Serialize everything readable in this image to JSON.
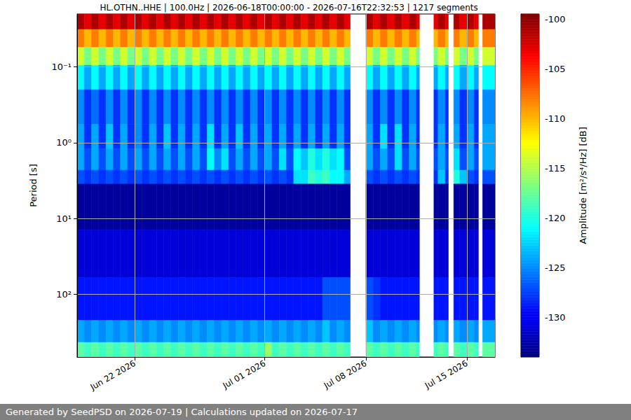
{
  "chart_data": {
    "type": "heatmap",
    "title": "HL.OTHN..HHE | 100.0Hz | 2026-06-18T00:00:00 - 2026-07-16T22:32:53 | 1217 segments",
    "footer": "Generated by SeedPSD on 2026-07-19 | Calculations updated on 2026-07-17",
    "y_label": "Period [s]",
    "colorbar_label": "Amplitude [m²/s⁴/Hz] [dB]",
    "log": "y",
    "grid": true,
    "xlim": [
      "2026-06-18T00:00:00",
      "2026-07-16T22:32:53"
    ],
    "xticks": [
      {
        "value": "2026-06-22T00:00:00",
        "label": "Jun 22 2026"
      },
      {
        "value": "2026-07-01T00:00:00",
        "label": "Jul 01 2026"
      },
      {
        "value": "2026-07-08T00:00:00",
        "label": "Jul 08 2026"
      },
      {
        "value": "2026-07-15T00:00:00",
        "label": "Jul 15 2026"
      }
    ],
    "ylim": [
      0.02,
      670
    ],
    "yticks": [
      {
        "value": 0.1,
        "label": "10⁻¹"
      },
      {
        "value": 1,
        "label": "10⁰"
      },
      {
        "value": 10,
        "label": "10¹"
      },
      {
        "value": 100,
        "label": "10²"
      }
    ],
    "colorbar_range": [
      -134,
      -99.5
    ],
    "colorbar_ticks": [
      -100,
      -105,
      -110,
      -115,
      -120,
      -125,
      -130
    ],
    "period_edges": [
      0.02,
      0.032,
      0.055,
      0.095,
      0.2,
      0.57,
      1.2,
      2.3,
      3.5,
      14,
      60,
      220,
      430,
      670
    ],
    "x": [
      "2026-06-18T00:00",
      "2026-06-18T12:00",
      "2026-06-19T00:00",
      "2026-06-19T12:00",
      "2026-06-20T00:00",
      "2026-06-20T12:00",
      "2026-06-21T00:00",
      "2026-06-21T12:00",
      "2026-06-22T00:00",
      "2026-06-22T12:00",
      "2026-06-23T00:00",
      "2026-06-23T12:00",
      "2026-06-24T00:00",
      "2026-06-24T12:00",
      "2026-06-25T00:00",
      "2026-06-25T12:00",
      "2026-06-26T00:00",
      "2026-06-26T12:00",
      "2026-06-27T00:00",
      "2026-06-27T12:00",
      "2026-06-28T00:00",
      "2026-06-28T12:00",
      "2026-06-29T00:00",
      "2026-06-29T12:00",
      "2026-06-30T00:00",
      "2026-06-30T12:00",
      "2026-07-01T00:00",
      "2026-07-01T12:00",
      "2026-07-02T00:00",
      "2026-07-02T12:00",
      "2026-07-03T00:00",
      "2026-07-03T12:00",
      "2026-07-04T00:00",
      "2026-07-04T12:00",
      "2026-07-05T00:00",
      "2026-07-05T12:00",
      "2026-07-06T00:00",
      "2026-07-06T12:00",
      "2026-07-06T22:00",
      "2026-07-08T00:00",
      "2026-07-08T12:00",
      "2026-07-09T00:00",
      "2026-07-09T12:00",
      "2026-07-10T00:00",
      "2026-07-10T12:00",
      "2026-07-11T00:00",
      "2026-07-11T12:00",
      "2026-07-11T17:00",
      "2026-07-12T17:00",
      "2026-07-13T00:00",
      "2026-07-13T12:00",
      "2026-07-13T17:00",
      "2026-07-14T02:00",
      "2026-07-14T12:00",
      "2026-07-15T00:00",
      "2026-07-15T12:00",
      "2026-07-15T19:00",
      "2026-07-16T02:00"
    ],
    "cells": [
      [
        -101,
        -108,
        -114,
        -121,
        -125,
        -124,
        -124,
        -127,
        -133,
        -131,
        -129,
        -124,
        -118
      ],
      [
        -103,
        -110,
        -117,
        -124,
        -128,
        -128,
        -127,
        -128,
        -133,
        -131,
        -129,
        -125,
        -119
      ],
      [
        -101,
        -108,
        -114,
        -121,
        -126,
        -124,
        -124,
        -127,
        -133,
        -131,
        -129,
        -124,
        -118
      ],
      [
        -103,
        -110,
        -117,
        -124,
        -128,
        -128,
        -127,
        -128,
        -133,
        -131,
        -129,
        -125,
        -119
      ],
      [
        -101,
        -108,
        -114,
        -121,
        -125,
        -123,
        -124,
        -127,
        -133,
        -131,
        -129,
        -124,
        -118
      ],
      [
        -103,
        -110,
        -117,
        -124,
        -128,
        -128,
        -127,
        -128,
        -133,
        -131,
        -129,
        -125,
        -119
      ],
      [
        -101,
        -108,
        -114,
        -121,
        -125,
        -124,
        -124,
        -127,
        -133,
        -131,
        -129,
        -124,
        -118
      ],
      [
        -103,
        -110,
        -117,
        -124,
        -128,
        -128,
        -127,
        -128,
        -133,
        -131,
        -129,
        -125,
        -119
      ],
      [
        -101,
        -108,
        -114,
        -121,
        -125,
        -125,
        -124,
        -127,
        -133,
        -131,
        -129,
        -124,
        -118
      ],
      [
        -103,
        -110,
        -117,
        -124,
        -128,
        -128,
        -127,
        -128,
        -133,
        -131,
        -129,
        -125,
        -119
      ],
      [
        -101,
        -108,
        -114,
        -121,
        -125,
        -124,
        -124,
        -127,
        -133,
        -131,
        -129,
        -124,
        -118
      ],
      [
        -103,
        -110,
        -117,
        -124,
        -128,
        -128,
        -127,
        -128,
        -133,
        -131,
        -129,
        -125,
        -119
      ],
      [
        -101,
        -108,
        -114,
        -121,
        -125,
        -123,
        -124,
        -127,
        -133,
        -131,
        -129,
        -124,
        -118
      ],
      [
        -103,
        -110,
        -117,
        -124,
        -128,
        -128,
        -127,
        -128,
        -133,
        -131,
        -129,
        -125,
        -119
      ],
      [
        -101,
        -108,
        -114,
        -121,
        -125,
        -124,
        -124,
        -127,
        -133,
        -131,
        -129,
        -124,
        -118
      ],
      [
        -103,
        -110,
        -117,
        -124,
        -128,
        -128,
        -127,
        -128,
        -133,
        -131,
        -129,
        -125,
        -119
      ],
      [
        -101,
        -108,
        -114,
        -121,
        -125,
        -124,
        -124,
        -127,
        -133,
        -131,
        -129,
        -124,
        -118
      ],
      [
        -103,
        -110,
        -117,
        -124,
        -128,
        -128,
        -127,
        -128,
        -133,
        -131,
        -129,
        -125,
        -119
      ],
      [
        -101,
        -108,
        -114,
        -121,
        -125,
        -122,
        -121,
        -127,
        -133,
        -131,
        -129,
        -124,
        -118
      ],
      [
        -103,
        -110,
        -117,
        -124,
        -128,
        -128,
        -125,
        -128,
        -133,
        -131,
        -129,
        -125,
        -119
      ],
      [
        -101,
        -108,
        -114,
        -121,
        -125,
        -124,
        -122,
        -127,
        -133,
        -131,
        -129,
        -124,
        -118
      ],
      [
        -103,
        -110,
        -117,
        -124,
        -128,
        -128,
        -127,
        -128,
        -133,
        -131,
        -129,
        -125,
        -119
      ],
      [
        -101,
        -108,
        -114,
        -121,
        -125,
        -123,
        -124,
        -127,
        -133,
        -131,
        -129,
        -124,
        -118
      ],
      [
        -103,
        -110,
        -117,
        -124,
        -128,
        -128,
        -127,
        -128,
        -133,
        -131,
        -129,
        -125,
        -119
      ],
      [
        -101,
        -108,
        -114,
        -121,
        -125,
        -124,
        -124,
        -127,
        -133,
        -131,
        -129,
        -124,
        -118
      ],
      [
        -103,
        -110,
        -117,
        -124,
        -128,
        -128,
        -127,
        -128,
        -133,
        -131,
        -129,
        -125,
        -119
      ],
      [
        -101,
        -108,
        -114,
        -121,
        -125,
        -124,
        -124,
        -127,
        -133,
        -131,
        -129,
        -124,
        -116
      ],
      [
        -103,
        -110,
        -117,
        -124,
        -128,
        -128,
        -127,
        -128,
        -133,
        -131,
        -129,
        -125,
        -119
      ],
      [
        -101,
        -108,
        -114,
        -121,
        -125,
        -124,
        -122,
        -127,
        -133,
        -131,
        -129,
        -124,
        -118
      ],
      [
        -103,
        -110,
        -117,
        -124,
        -128,
        -128,
        -127,
        -128,
        -133,
        -131,
        -129,
        -125,
        -119
      ],
      [
        -101,
        -108,
        -114,
        -121,
        -125,
        -124,
        -121,
        -122,
        -133,
        -131,
        -129,
        -124,
        -118
      ],
      [
        -103,
        -110,
        -117,
        -124,
        -128,
        -128,
        -123,
        -122,
        -133,
        -131,
        -129,
        -125,
        -119
      ],
      [
        -101,
        -108,
        -114,
        -121,
        -125,
        -124,
        -120,
        -119,
        -133,
        -131,
        -129,
        -124,
        -118
      ],
      [
        -103,
        -110,
        -117,
        -124,
        -128,
        -128,
        -122,
        -120,
        -133,
        -131,
        -129,
        -125,
        -119
      ],
      [
        -101,
        -108,
        -114,
        -121,
        -125,
        -124,
        -120,
        -119,
        -133,
        -131,
        -127,
        -123,
        -118
      ],
      [
        -103,
        -110,
        -117,
        -124,
        -128,
        -128,
        -122,
        -121,
        -133,
        -131,
        -127,
        -125,
        -119
      ],
      [
        -101,
        -108,
        -114,
        -121,
        -125,
        -124,
        -121,
        -121,
        -133,
        -131,
        -127,
        -124,
        -118
      ],
      [
        -103,
        -110,
        -117,
        -124,
        -128,
        -128,
        -127,
        -124,
        -133,
        -131,
        -127,
        -125,
        -119
      ],
      null,
      [
        -101,
        -108,
        -114,
        -121,
        -125,
        -124,
        -124,
        -127,
        -133,
        -131,
        -127,
        -123,
        -118
      ],
      [
        -103,
        -110,
        -117,
        -124,
        -128,
        -128,
        -127,
        -128,
        -133,
        -131,
        -128,
        -125,
        -119
      ],
      [
        -101,
        -108,
        -114,
        -121,
        -125,
        -122,
        -124,
        -127,
        -133,
        -131,
        -129,
        -124,
        -118
      ],
      [
        -103,
        -110,
        -117,
        -124,
        -128,
        -128,
        -127,
        -128,
        -133,
        -131,
        -129,
        -125,
        -119
      ],
      [
        -101,
        -108,
        -114,
        -121,
        -125,
        -122,
        -122,
        -127,
        -133,
        -131,
        -129,
        -124,
        -118
      ],
      [
        -103,
        -110,
        -117,
        -124,
        -128,
        -128,
        -127,
        -128,
        -133,
        -131,
        -129,
        -125,
        -119
      ],
      [
        -101,
        -108,
        -114,
        -121,
        -125,
        -124,
        -124,
        -127,
        -133,
        -131,
        -129,
        -124,
        -118
      ],
      [
        -103,
        -110,
        -117,
        -124,
        -128,
        -128,
        -127,
        -128,
        -133,
        -131,
        -129,
        -125,
        -119
      ],
      null,
      [
        -103,
        -110,
        -117,
        -124,
        -128,
        -128,
        -127,
        -128,
        -133,
        -131,
        -129,
        -125,
        -119
      ],
      [
        -101,
        -108,
        -114,
        -121,
        -125,
        -124,
        -124,
        -123,
        -133,
        -131,
        -129,
        -124,
        -118
      ],
      [
        -103,
        -110,
        -117,
        -124,
        -128,
        -128,
        -127,
        -128,
        -133,
        -131,
        -129,
        -125,
        -119
      ],
      null,
      [
        -101,
        -108,
        -114,
        -121,
        -125,
        -124,
        -122,
        -120,
        -133,
        -131,
        -129,
        -124,
        -118
      ],
      [
        -103,
        -110,
        -117,
        -124,
        -128,
        -128,
        -127,
        -123,
        -133,
        -131,
        -129,
        -125,
        -119
      ],
      [
        -101,
        -108,
        -114,
        -121,
        -125,
        -124,
        -124,
        -127,
        -133,
        -131,
        -129,
        -124,
        -118
      ],
      [
        -103,
        -110,
        -117,
        -124,
        -128,
        -128,
        -127,
        -128,
        -133,
        -131,
        -129,
        -125,
        -119
      ],
      null,
      [
        -101,
        -108,
        -114,
        -121,
        -125,
        -124,
        -124,
        -127,
        -133,
        -131,
        -129,
        -124,
        -118
      ]
    ]
  }
}
